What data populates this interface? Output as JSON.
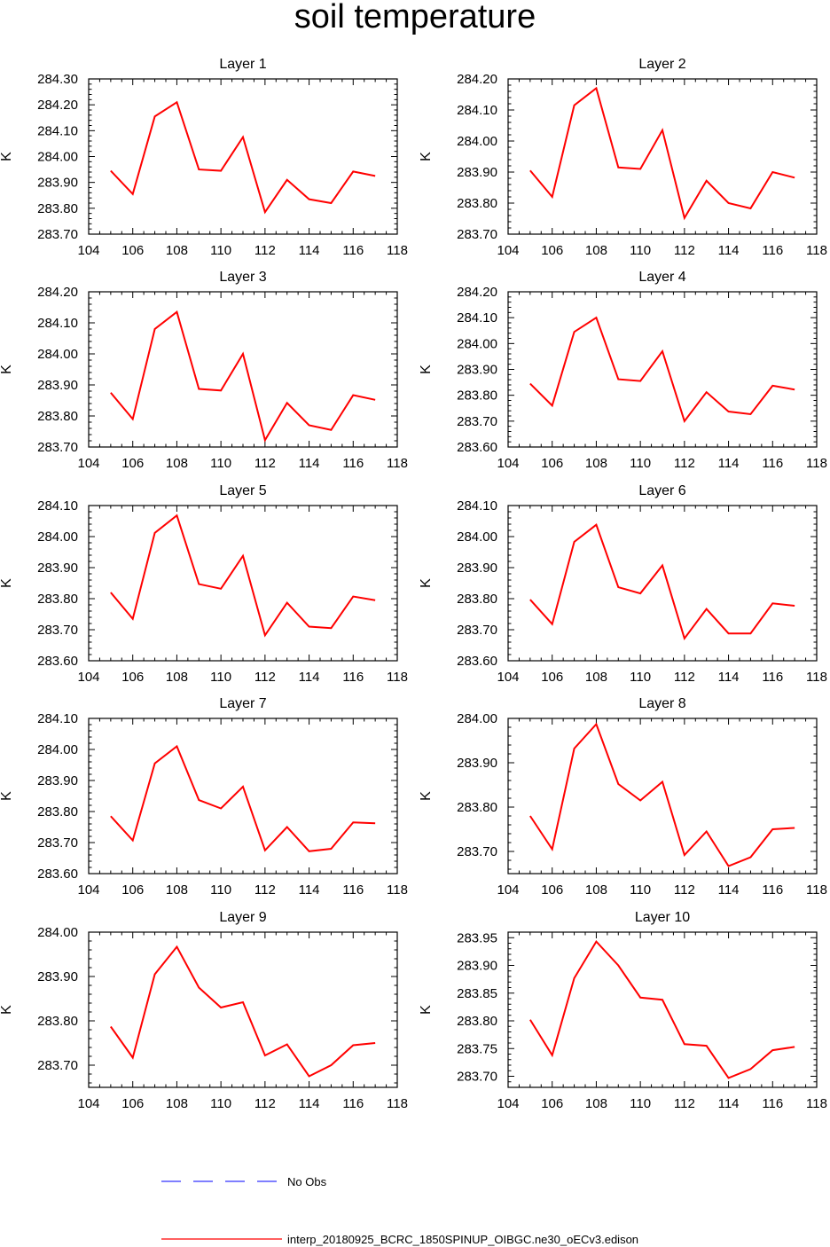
{
  "title": "soil temperature",
  "legend": [
    {
      "label": "No Obs",
      "color": "#3333ff",
      "style": "dashed"
    },
    {
      "label": "interp_20180925_BCRC_1850SPINUP_OIBGC.ne30_oECv3.edison",
      "color": "#ff0000",
      "style": "solid"
    }
  ],
  "chart_data": [
    {
      "type": "line",
      "title": "Layer 1",
      "ylabel": "K",
      "xlim": [
        104,
        118
      ],
      "xticks": [
        104,
        106,
        108,
        110,
        112,
        114,
        116,
        118
      ],
      "ylim": [
        283.7,
        284.3
      ],
      "yticks": [
        "283.70",
        "283.80",
        "283.90",
        "284.00",
        "284.10",
        "284.20",
        "284.30"
      ],
      "series": [
        {
          "color": "#ff0000",
          "x": [
            105,
            106,
            107,
            108,
            109,
            110,
            111,
            112,
            113,
            114,
            115,
            116,
            117
          ],
          "y": [
            283.945,
            283.855,
            284.155,
            284.21,
            283.95,
            283.945,
            284.075,
            283.785,
            283.91,
            283.835,
            283.82,
            283.942,
            283.925
          ]
        }
      ]
    },
    {
      "type": "line",
      "title": "Layer 2",
      "ylabel": "K",
      "xlim": [
        104,
        118
      ],
      "xticks": [
        104,
        106,
        108,
        110,
        112,
        114,
        116,
        118
      ],
      "ylim": [
        283.7,
        284.2
      ],
      "yticks": [
        "283.70",
        "283.80",
        "283.90",
        "284.00",
        "284.10",
        "284.20"
      ],
      "series": [
        {
          "color": "#ff0000",
          "x": [
            105,
            106,
            107,
            108,
            109,
            110,
            111,
            112,
            113,
            114,
            115,
            116,
            117
          ],
          "y": [
            283.905,
            283.82,
            284.115,
            284.17,
            283.915,
            283.91,
            284.035,
            283.752,
            283.872,
            283.8,
            283.783,
            283.9,
            283.882
          ]
        }
      ]
    },
    {
      "type": "line",
      "title": "Layer 3",
      "ylabel": "K",
      "xlim": [
        104,
        118
      ],
      "xticks": [
        104,
        106,
        108,
        110,
        112,
        114,
        116,
        118
      ],
      "ylim": [
        283.7,
        284.2
      ],
      "yticks": [
        "283.70",
        "283.80",
        "283.90",
        "284.00",
        "284.10",
        "284.20"
      ],
      "series": [
        {
          "color": "#ff0000",
          "x": [
            105,
            106,
            107,
            108,
            109,
            110,
            111,
            112,
            113,
            114,
            115,
            116,
            117
          ],
          "y": [
            283.875,
            283.79,
            284.08,
            284.135,
            283.887,
            283.882,
            284.0,
            283.722,
            283.842,
            283.77,
            283.755,
            283.867,
            283.852
          ]
        }
      ]
    },
    {
      "type": "line",
      "title": "Layer 4",
      "ylabel": "K",
      "xlim": [
        104,
        118
      ],
      "xticks": [
        104,
        106,
        108,
        110,
        112,
        114,
        116,
        118
      ],
      "ylim": [
        283.6,
        284.2
      ],
      "yticks": [
        "283.60",
        "283.70",
        "283.80",
        "283.90",
        "284.00",
        "284.10",
        "284.20"
      ],
      "series": [
        {
          "color": "#ff0000",
          "x": [
            105,
            106,
            107,
            108,
            109,
            110,
            111,
            112,
            113,
            114,
            115,
            116,
            117
          ],
          "y": [
            283.845,
            283.76,
            284.045,
            284.1,
            283.862,
            283.855,
            283.97,
            283.7,
            283.812,
            283.737,
            283.727,
            283.837,
            283.822
          ]
        }
      ]
    },
    {
      "type": "line",
      "title": "Layer 5",
      "ylabel": "K",
      "xlim": [
        104,
        118
      ],
      "xticks": [
        104,
        106,
        108,
        110,
        112,
        114,
        116,
        118
      ],
      "ylim": [
        283.6,
        284.1
      ],
      "yticks": [
        "283.60",
        "283.70",
        "283.80",
        "283.90",
        "284.00",
        "284.10"
      ],
      "series": [
        {
          "color": "#ff0000",
          "x": [
            105,
            106,
            107,
            108,
            109,
            110,
            111,
            112,
            113,
            114,
            115,
            116,
            117
          ],
          "y": [
            283.82,
            283.735,
            284.012,
            284.068,
            283.847,
            283.832,
            283.938,
            283.682,
            283.787,
            283.71,
            283.705,
            283.807,
            283.795
          ]
        }
      ]
    },
    {
      "type": "line",
      "title": "Layer 6",
      "ylabel": "K",
      "xlim": [
        104,
        118
      ],
      "xticks": [
        104,
        106,
        108,
        110,
        112,
        114,
        116,
        118
      ],
      "ylim": [
        283.6,
        284.1
      ],
      "yticks": [
        "283.60",
        "283.70",
        "283.80",
        "283.90",
        "284.00",
        "284.10"
      ],
      "series": [
        {
          "color": "#ff0000",
          "x": [
            105,
            106,
            107,
            108,
            109,
            110,
            111,
            112,
            113,
            114,
            115,
            116,
            117
          ],
          "y": [
            283.797,
            283.718,
            283.983,
            284.038,
            283.837,
            283.817,
            283.907,
            283.672,
            283.767,
            283.688,
            283.688,
            283.785,
            283.777
          ]
        }
      ]
    },
    {
      "type": "line",
      "title": "Layer 7",
      "ylabel": "K",
      "xlim": [
        104,
        118
      ],
      "xticks": [
        104,
        106,
        108,
        110,
        112,
        114,
        116,
        118
      ],
      "ylim": [
        283.6,
        284.1
      ],
      "yticks": [
        "283.60",
        "283.70",
        "283.80",
        "283.90",
        "284.00",
        "284.10"
      ],
      "series": [
        {
          "color": "#ff0000",
          "x": [
            105,
            106,
            107,
            108,
            109,
            110,
            111,
            112,
            113,
            114,
            115,
            116,
            117
          ],
          "y": [
            283.785,
            283.707,
            283.955,
            284.01,
            283.837,
            283.81,
            283.88,
            283.675,
            283.75,
            283.672,
            283.68,
            283.765,
            283.762
          ]
        }
      ]
    },
    {
      "type": "line",
      "title": "Layer 8",
      "ylabel": "K",
      "xlim": [
        104,
        118
      ],
      "xticks": [
        104,
        106,
        108,
        110,
        112,
        114,
        116,
        118
      ],
      "ylim": [
        283.65,
        284.0
      ],
      "yticks": [
        "283.70",
        "283.80",
        "283.90",
        "284.00"
      ],
      "series": [
        {
          "color": "#ff0000",
          "x": [
            105,
            106,
            107,
            108,
            109,
            110,
            111,
            112,
            113,
            114,
            115,
            116,
            117
          ],
          "y": [
            283.78,
            283.705,
            283.932,
            283.987,
            283.852,
            283.815,
            283.857,
            283.692,
            283.745,
            283.667,
            283.687,
            283.75,
            283.753
          ]
        }
      ]
    },
    {
      "type": "line",
      "title": "Layer 9",
      "ylabel": "K",
      "xlim": [
        104,
        118
      ],
      "xticks": [
        104,
        106,
        108,
        110,
        112,
        114,
        116,
        118
      ],
      "ylim": [
        283.65,
        284.0
      ],
      "yticks": [
        "283.70",
        "283.80",
        "283.90",
        "284.00"
      ],
      "series": [
        {
          "color": "#ff0000",
          "x": [
            105,
            106,
            107,
            108,
            109,
            110,
            111,
            112,
            113,
            114,
            115,
            116,
            117
          ],
          "y": [
            283.787,
            283.717,
            283.905,
            283.967,
            283.875,
            283.83,
            283.842,
            283.722,
            283.747,
            283.675,
            283.7,
            283.745,
            283.75
          ]
        }
      ]
    },
    {
      "type": "line",
      "title": "Layer 10",
      "ylabel": "K",
      "xlim": [
        104,
        118
      ],
      "xticks": [
        104,
        106,
        108,
        110,
        112,
        114,
        116,
        118
      ],
      "ylim": [
        283.68,
        283.96
      ],
      "yticks": [
        "283.70",
        "283.75",
        "283.80",
        "283.85",
        "283.90",
        "283.95"
      ],
      "series": [
        {
          "color": "#ff0000",
          "x": [
            105,
            106,
            107,
            108,
            109,
            110,
            111,
            112,
            113,
            114,
            115,
            116,
            117
          ],
          "y": [
            283.802,
            283.738,
            283.877,
            283.943,
            283.9,
            283.842,
            283.838,
            283.758,
            283.755,
            283.697,
            283.713,
            283.747,
            283.753
          ]
        }
      ]
    }
  ]
}
